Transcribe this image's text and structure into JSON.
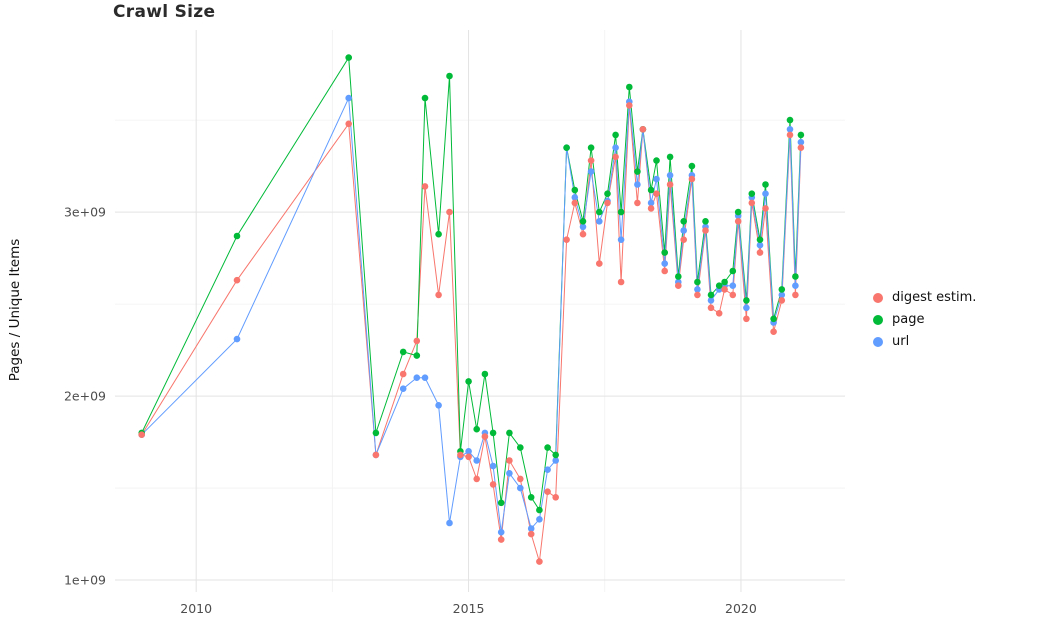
{
  "chart_data": {
    "type": "line",
    "mark": "point+line",
    "title": "Crawl Size",
    "xlabel": "",
    "ylabel": "Pages / Unique Items",
    "x_unit": "year (decimal)",
    "y_unit": "billions (1e9) of pages / unique items",
    "x_domain": [
      2008.51,
      2021.91
    ],
    "y_domain_billions": [
      0.935,
      3.99
    ],
    "x_ticks": [
      2010,
      2015,
      2020
    ],
    "x_tick_labels": [
      "2010",
      "2015",
      "2020"
    ],
    "x_minor_ticks": [
      2012.5,
      2017.5
    ],
    "y_ticks_billions": [
      1,
      2,
      3
    ],
    "y_tick_labels": [
      "1e+09",
      "2e+09",
      "3e+09"
    ],
    "y_minor_ticks_billions": [
      1.5,
      2.5,
      3.5
    ],
    "grid": {
      "major_color": "#e3e3e3",
      "minor_color": "#f1f1f1",
      "background": "#ffffff"
    },
    "legend_position": "right",
    "x": [
      2009.0,
      2010.75,
      2012.8,
      2013.3,
      2013.8,
      2014.05,
      2014.2,
      2014.45,
      2014.65,
      2014.85,
      2015.0,
      2015.15,
      2015.3,
      2015.45,
      2015.6,
      2015.75,
      2015.95,
      2016.15,
      2016.3,
      2016.45,
      2016.6,
      2016.8,
      2016.95,
      2017.1,
      2017.25,
      2017.4,
      2017.55,
      2017.7,
      2017.8,
      2017.95,
      2018.1,
      2018.2,
      2018.35,
      2018.45,
      2018.6,
      2018.7,
      2018.85,
      2018.95,
      2019.1,
      2019.2,
      2019.35,
      2019.45,
      2019.6,
      2019.7,
      2019.85,
      2019.95,
      2020.1,
      2020.2,
      2020.35,
      2020.45,
      2020.6,
      2020.75,
      2020.9,
      2021.0,
      2021.1
    ],
    "series": [
      {
        "key": "digest",
        "name": "digest estim.",
        "color": "#F8766D",
        "values": [
          1.79,
          2.63,
          3.48,
          1.68,
          2.12,
          2.3,
          3.14,
          2.55,
          3.0,
          1.68,
          1.67,
          1.55,
          1.78,
          1.52,
          1.22,
          1.65,
          1.55,
          1.25,
          1.1,
          1.48,
          1.45,
          2.85,
          3.05,
          2.88,
          3.28,
          2.72,
          3.05,
          3.3,
          2.62,
          3.58,
          3.05,
          3.45,
          3.02,
          3.1,
          2.68,
          3.15,
          2.6,
          2.85,
          3.18,
          2.55,
          2.9,
          2.48,
          2.45,
          2.58,
          2.55,
          2.95,
          2.42,
          3.05,
          2.78,
          3.02,
          2.35,
          2.52,
          3.42,
          2.55,
          3.35
        ]
      },
      {
        "key": "page",
        "name": "page",
        "color": "#00BA38",
        "values": [
          1.8,
          2.87,
          3.84,
          1.8,
          2.24,
          2.22,
          3.62,
          2.88,
          3.74,
          1.7,
          2.08,
          1.82,
          2.12,
          1.8,
          1.42,
          1.8,
          1.72,
          1.45,
          1.38,
          1.72,
          1.68,
          3.35,
          3.12,
          2.95,
          3.35,
          3.0,
          3.1,
          3.42,
          3.0,
          3.68,
          3.22,
          3.45,
          3.12,
          3.28,
          2.78,
          3.3,
          2.65,
          2.95,
          3.25,
          2.62,
          2.95,
          2.55,
          2.6,
          2.62,
          2.68,
          3.0,
          2.52,
          3.1,
          2.85,
          3.15,
          2.42,
          2.58,
          3.5,
          2.65,
          3.42
        ]
      },
      {
        "key": "url",
        "name": "url",
        "color": "#619CFF",
        "values": [
          1.79,
          2.31,
          3.62,
          1.68,
          2.04,
          2.1,
          2.1,
          1.95,
          1.31,
          1.67,
          1.7,
          1.65,
          1.8,
          1.62,
          1.26,
          1.58,
          1.5,
          1.28,
          1.33,
          1.6,
          1.65,
          3.35,
          3.08,
          2.92,
          3.22,
          2.95,
          3.06,
          3.35,
          2.85,
          3.6,
          3.15,
          3.45,
          3.05,
          3.18,
          2.72,
          3.2,
          2.62,
          2.9,
          3.2,
          2.58,
          2.92,
          2.52,
          2.58,
          2.6,
          2.6,
          2.98,
          2.48,
          3.08,
          2.82,
          3.1,
          2.4,
          2.55,
          3.45,
          2.6,
          3.38
        ]
      }
    ]
  }
}
